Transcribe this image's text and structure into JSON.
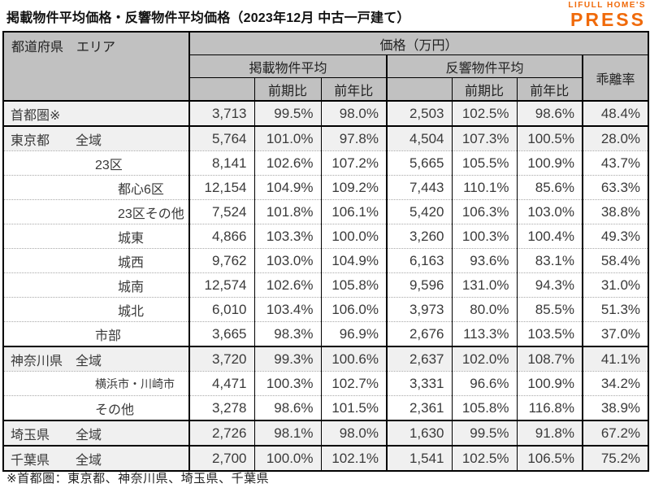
{
  "page": {
    "title": "掲載物件平均価格・反響物件平均価格（2023年12月 中古一戸建て）",
    "footnote": "※首都圏：東京都、神奈川県、埼玉県、千葉県"
  },
  "logo": {
    "line1": "LIFULL HOME'S",
    "line2": "PRESS",
    "color": "#f06a0a"
  },
  "colors": {
    "header_bg": "#c1c1c1",
    "band_bg": "#f0f0f0",
    "border": "#000000",
    "dotted_separator": "#a8a8a8",
    "logo_orange": "#f06a0a"
  },
  "chart_data": {
    "type": "table",
    "title": "掲載物件平均価格・反響物件平均価格（2023年12月 中古一戸建て）",
    "unit": "万円",
    "header": {
      "area": "都道府県　エリア",
      "price_unit": "価格（万円）",
      "listed": "掲載物件平均",
      "inquiry": "反響物件平均",
      "divergence": "乖離率",
      "qoq": "前期比",
      "yoy": "前年比"
    },
    "columns": [
      "都道府県/エリア",
      "掲載物件平均",
      "掲載前期比",
      "掲載前年比",
      "反響物件平均",
      "反響前期比",
      "反響前年比",
      "乖離率"
    ],
    "rows": [
      {
        "pref": "首都圏※",
        "area": "",
        "indent": 0,
        "band": true,
        "group_start": false,
        "small": false,
        "values": [
          "3,713",
          "99.5%",
          "98.0%",
          "2,503",
          "102.5%",
          "98.6%",
          "48.4%"
        ]
      },
      {
        "pref": "東京都",
        "area": "全域",
        "indent": 1,
        "band": true,
        "group_start": true,
        "small": false,
        "values": [
          "5,764",
          "101.0%",
          "97.8%",
          "4,504",
          "107.3%",
          "100.5%",
          "28.0%"
        ]
      },
      {
        "pref": "",
        "area": "23区",
        "indent": 2,
        "band": false,
        "group_start": false,
        "small": false,
        "values": [
          "8,141",
          "102.6%",
          "107.2%",
          "5,665",
          "105.5%",
          "100.9%",
          "43.7%"
        ]
      },
      {
        "pref": "",
        "area": "都心6区",
        "indent": 3,
        "band": false,
        "group_start": false,
        "small": false,
        "values": [
          "12,154",
          "104.9%",
          "109.2%",
          "7,443",
          "110.1%",
          "85.6%",
          "63.3%"
        ]
      },
      {
        "pref": "",
        "area": "23区その他",
        "indent": 3,
        "band": false,
        "group_start": false,
        "small": false,
        "values": [
          "7,524",
          "101.8%",
          "106.1%",
          "5,420",
          "106.3%",
          "103.0%",
          "38.8%"
        ]
      },
      {
        "pref": "",
        "area": "城東",
        "indent": 3,
        "band": false,
        "group_start": false,
        "small": false,
        "values": [
          "4,866",
          "103.3%",
          "100.0%",
          "3,260",
          "100.3%",
          "100.4%",
          "49.3%"
        ]
      },
      {
        "pref": "",
        "area": "城西",
        "indent": 3,
        "band": false,
        "group_start": false,
        "small": false,
        "values": [
          "9,762",
          "103.0%",
          "104.9%",
          "6,163",
          "93.6%",
          "83.1%",
          "58.4%"
        ]
      },
      {
        "pref": "",
        "area": "城南",
        "indent": 3,
        "band": false,
        "group_start": false,
        "small": false,
        "values": [
          "12,574",
          "102.6%",
          "105.8%",
          "9,596",
          "131.0%",
          "94.3%",
          "31.0%"
        ]
      },
      {
        "pref": "",
        "area": "城北",
        "indent": 3,
        "band": false,
        "group_start": false,
        "small": false,
        "values": [
          "6,010",
          "103.4%",
          "106.0%",
          "3,973",
          "80.0%",
          "85.5%",
          "51.3%"
        ]
      },
      {
        "pref": "",
        "area": "市部",
        "indent": 2,
        "band": false,
        "group_start": false,
        "small": false,
        "values": [
          "3,665",
          "98.3%",
          "96.9%",
          "2,676",
          "113.3%",
          "103.5%",
          "37.0%"
        ]
      },
      {
        "pref": "神奈川県",
        "area": "全域",
        "indent": 1,
        "band": true,
        "group_start": true,
        "small": false,
        "values": [
          "3,720",
          "99.3%",
          "100.6%",
          "2,637",
          "102.0%",
          "108.7%",
          "41.1%"
        ]
      },
      {
        "pref": "",
        "area": "横浜市・川崎市",
        "indent": 2,
        "band": false,
        "group_start": false,
        "small": true,
        "values": [
          "4,471",
          "100.3%",
          "102.7%",
          "3,331",
          "96.6%",
          "100.9%",
          "34.2%"
        ]
      },
      {
        "pref": "",
        "area": "その他",
        "indent": 2,
        "band": false,
        "group_start": false,
        "small": false,
        "values": [
          "3,278",
          "98.6%",
          "101.5%",
          "2,361",
          "105.8%",
          "116.8%",
          "38.9%"
        ]
      },
      {
        "pref": "埼玉県",
        "area": "全域",
        "indent": 1,
        "band": true,
        "group_start": true,
        "small": false,
        "values": [
          "2,726",
          "98.1%",
          "98.0%",
          "1,630",
          "99.5%",
          "91.8%",
          "67.2%"
        ]
      },
      {
        "pref": "千葉県",
        "area": "全域",
        "indent": 1,
        "band": true,
        "group_start": true,
        "small": false,
        "values": [
          "2,700",
          "100.0%",
          "102.1%",
          "1,541",
          "102.5%",
          "106.5%",
          "75.2%"
        ]
      }
    ]
  }
}
